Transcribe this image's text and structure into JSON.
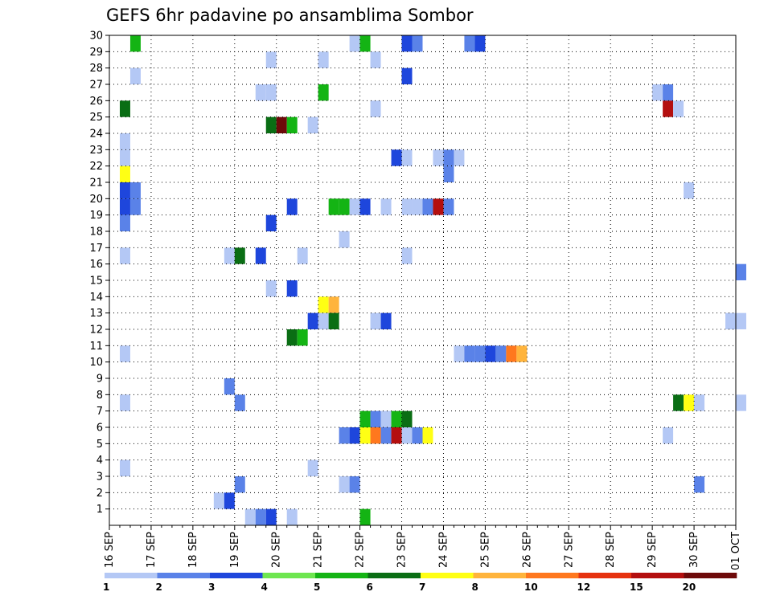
{
  "chart_data": {
    "type": "heatmap",
    "title": "GEFS 6hr padavine po ansamblima Sombor",
    "x_labels": [
      "16 SEP",
      "17 SEP",
      "18 SEP",
      "19 SEP",
      "20 SEP",
      "21 SEP",
      "22 SEP",
      "23 SEP",
      "24 SEP",
      "25 SEP",
      "26 SEP",
      "27 SEP",
      "28 SEP",
      "29 SEP",
      "30 SEP",
      "01 OCT"
    ],
    "x_step_hours": 6,
    "y_labels": [
      "1",
      "2",
      "3",
      "4",
      "5",
      "6",
      "7",
      "8",
      "9",
      "10",
      "11",
      "12",
      "13",
      "14",
      "15",
      "16",
      "17",
      "18",
      "19",
      "20",
      "21",
      "22",
      "23",
      "24",
      "25",
      "26",
      "27",
      "28",
      "29",
      "30"
    ],
    "grid": "dotted",
    "colorbar": {
      "labels": [
        "1",
        "2",
        "3",
        "4",
        "5",
        "6",
        "7",
        "8",
        "10",
        "12",
        "15",
        "20"
      ],
      "colors": [
        "#b4c8f5",
        "#5a82e8",
        "#1e46dc",
        "#6ee650",
        "#14b414",
        "#0a6e14",
        "#ffff14",
        "#ffb43c",
        "#ff781e",
        "#e6320f",
        "#b40f0f",
        "#6e0a0a"
      ]
    },
    "cells": [
      {
        "member": 30,
        "step": 15,
        "value": 2
      },
      {
        "member": 30,
        "step": 16,
        "value": 7
      },
      {
        "member": 30,
        "step": 17,
        "value": 20
      },
      {
        "member": 30,
        "step": 18,
        "value": 20
      },
      {
        "member": 30,
        "step": 19,
        "value": 2
      },
      {
        "member": 30,
        "step": 21,
        "value": 2
      },
      {
        "member": 30,
        "step": 22,
        "value": 2
      },
      {
        "member": 30,
        "step": 23,
        "value": 2
      },
      {
        "member": 30,
        "step": 55,
        "value": 5
      },
      {
        "member": 30,
        "step": 60,
        "value": 3
      },
      {
        "member": 29,
        "step": 2,
        "value": 5
      },
      {
        "member": 29,
        "step": 23,
        "value": 1
      },
      {
        "member": 29,
        "step": 24,
        "value": 5
      },
      {
        "member": 29,
        "step": 28,
        "value": 3
      },
      {
        "member": 29,
        "step": 29,
        "value": 2
      },
      {
        "member": 29,
        "step": 34,
        "value": 2
      },
      {
        "member": 29,
        "step": 35,
        "value": 3
      },
      {
        "member": 28,
        "step": 15,
        "value": 1
      },
      {
        "member": 28,
        "step": 20,
        "value": 1
      },
      {
        "member": 28,
        "step": 25,
        "value": 1
      },
      {
        "member": 27,
        "step": 2,
        "value": 1
      },
      {
        "member": 27,
        "step": 28,
        "value": 3
      },
      {
        "member": 26,
        "step": 14,
        "value": 1
      },
      {
        "member": 26,
        "step": 15,
        "value": 1
      },
      {
        "member": 26,
        "step": 20,
        "value": 5
      },
      {
        "member": 26,
        "step": 52,
        "value": 1
      },
      {
        "member": 26,
        "step": 53,
        "value": 2
      },
      {
        "member": 25,
        "step": 1,
        "value": 6
      },
      {
        "member": 25,
        "step": 25,
        "value": 1
      },
      {
        "member": 25,
        "step": 53,
        "value": 15
      },
      {
        "member": 25,
        "step": 54,
        "value": 1
      },
      {
        "member": 24,
        "step": 15,
        "value": 6
      },
      {
        "member": 24,
        "step": 16,
        "value": 20
      },
      {
        "member": 24,
        "step": 17,
        "value": 5
      },
      {
        "member": 24,
        "step": 19,
        "value": 1
      },
      {
        "member": 23,
        "step": 1,
        "value": 1
      },
      {
        "member": 22,
        "step": 1,
        "value": 1
      },
      {
        "member": 22,
        "step": 27,
        "value": 3
      },
      {
        "member": 22,
        "step": 28,
        "value": 1
      },
      {
        "member": 22,
        "step": 31,
        "value": 1
      },
      {
        "member": 22,
        "step": 32,
        "value": 2
      },
      {
        "member": 22,
        "step": 33,
        "value": 1
      },
      {
        "member": 21,
        "step": 1,
        "value": 7
      },
      {
        "member": 21,
        "step": 32,
        "value": 2
      },
      {
        "member": 20,
        "step": 1,
        "value": 3
      },
      {
        "member": 20,
        "step": 2,
        "value": 2
      },
      {
        "member": 20,
        "step": 55,
        "value": 1
      },
      {
        "member": 19,
        "step": 1,
        "value": 3
      },
      {
        "member": 19,
        "step": 2,
        "value": 2
      },
      {
        "member": 19,
        "step": 17,
        "value": 3
      },
      {
        "member": 19,
        "step": 21,
        "value": 5
      },
      {
        "member": 19,
        "step": 22,
        "value": 5
      },
      {
        "member": 19,
        "step": 23,
        "value": 1
      },
      {
        "member": 19,
        "step": 24,
        "value": 3
      },
      {
        "member": 19,
        "step": 26,
        "value": 1
      },
      {
        "member": 19,
        "step": 28,
        "value": 1
      },
      {
        "member": 19,
        "step": 29,
        "value": 1
      },
      {
        "member": 19,
        "step": 30,
        "value": 2
      },
      {
        "member": 19,
        "step": 31,
        "value": 15
      },
      {
        "member": 19,
        "step": 32,
        "value": 2
      },
      {
        "member": 18,
        "step": 1,
        "value": 2
      },
      {
        "member": 18,
        "step": 15,
        "value": 3
      },
      {
        "member": 17,
        "step": 22,
        "value": 1
      },
      {
        "member": 16,
        "step": 1,
        "value": 1
      },
      {
        "member": 16,
        "step": 11,
        "value": 1
      },
      {
        "member": 16,
        "step": 12,
        "value": 6
      },
      {
        "member": 16,
        "step": 14,
        "value": 3
      },
      {
        "member": 16,
        "step": 18,
        "value": 1
      },
      {
        "member": 16,
        "step": 28,
        "value": 1
      },
      {
        "member": 15,
        "step": 60,
        "value": 2
      },
      {
        "member": 14,
        "step": 15,
        "value": 1
      },
      {
        "member": 14,
        "step": 17,
        "value": 3
      },
      {
        "member": 13,
        "step": 20,
        "value": 7
      },
      {
        "member": 13,
        "step": 21,
        "value": 8
      },
      {
        "member": 12,
        "step": 19,
        "value": 3
      },
      {
        "member": 12,
        "step": 20,
        "value": 1
      },
      {
        "member": 12,
        "step": 21,
        "value": 6
      },
      {
        "member": 12,
        "step": 25,
        "value": 1
      },
      {
        "member": 12,
        "step": 26,
        "value": 3
      },
      {
        "member": 12,
        "step": 59,
        "value": 1
      },
      {
        "member": 12,
        "step": 60,
        "value": 1
      },
      {
        "member": 11,
        "step": 17,
        "value": 6
      },
      {
        "member": 11,
        "step": 18,
        "value": 5
      },
      {
        "member": 10,
        "step": 1,
        "value": 1
      },
      {
        "member": 10,
        "step": 33,
        "value": 1
      },
      {
        "member": 10,
        "step": 34,
        "value": 2
      },
      {
        "member": 10,
        "step": 35,
        "value": 2
      },
      {
        "member": 10,
        "step": 36,
        "value": 3
      },
      {
        "member": 10,
        "step": 37,
        "value": 2
      },
      {
        "member": 10,
        "step": 38,
        "value": 10
      },
      {
        "member": 10,
        "step": 39,
        "value": 8
      },
      {
        "member": 8,
        "step": 11,
        "value": 2
      },
      {
        "member": 7,
        "step": 1,
        "value": 1
      },
      {
        "member": 7,
        "step": 12,
        "value": 2
      },
      {
        "member": 7,
        "step": 54,
        "value": 6
      },
      {
        "member": 7,
        "step": 55,
        "value": 7
      },
      {
        "member": 7,
        "step": 56,
        "value": 1
      },
      {
        "member": 7,
        "step": 60,
        "value": 1
      },
      {
        "member": 6,
        "step": 24,
        "value": 5
      },
      {
        "member": 6,
        "step": 25,
        "value": 2
      },
      {
        "member": 6,
        "step": 26,
        "value": 1
      },
      {
        "member": 6,
        "step": 27,
        "value": 5
      },
      {
        "member": 6,
        "step": 28,
        "value": 6
      },
      {
        "member": 5,
        "step": 22,
        "value": 2
      },
      {
        "member": 5,
        "step": 23,
        "value": 3
      },
      {
        "member": 5,
        "step": 24,
        "value": 7
      },
      {
        "member": 5,
        "step": 25,
        "value": 10
      },
      {
        "member": 5,
        "step": 26,
        "value": 2
      },
      {
        "member": 5,
        "step": 27,
        "value": 15
      },
      {
        "member": 5,
        "step": 28,
        "value": 1
      },
      {
        "member": 5,
        "step": 29,
        "value": 2
      },
      {
        "member": 5,
        "step": 30,
        "value": 7
      },
      {
        "member": 5,
        "step": 53,
        "value": 1
      },
      {
        "member": 3,
        "step": 1,
        "value": 1
      },
      {
        "member": 3,
        "step": 19,
        "value": 1
      },
      {
        "member": 2,
        "step": 12,
        "value": 2
      },
      {
        "member": 2,
        "step": 22,
        "value": 1
      },
      {
        "member": 2,
        "step": 23,
        "value": 2
      },
      {
        "member": 2,
        "step": 56,
        "value": 2
      },
      {
        "member": 1,
        "step": 10,
        "value": 1
      },
      {
        "member": 1,
        "step": 11,
        "value": 3
      },
      {
        "member": 0,
        "step": 13,
        "value": 1
      },
      {
        "member": 0,
        "step": 14,
        "value": 2
      },
      {
        "member": 0,
        "step": 15,
        "value": 3
      },
      {
        "member": 0,
        "step": 17,
        "value": 1
      },
      {
        "member": 0,
        "step": 24,
        "value": 5
      }
    ]
  }
}
